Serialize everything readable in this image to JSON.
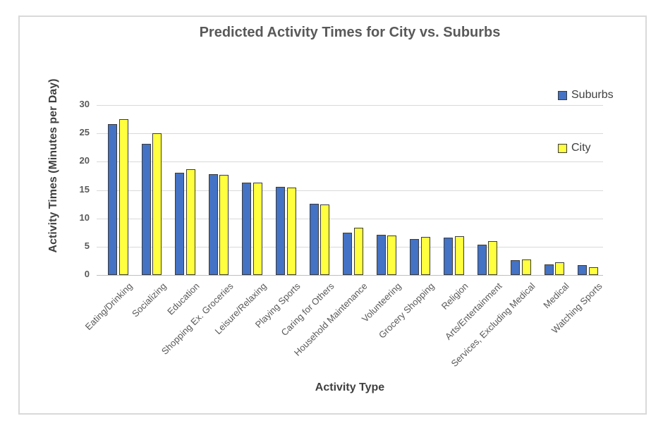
{
  "chart_data": {
    "type": "bar",
    "title": "Predicted Activity Times for City vs. Suburbs",
    "xlabel": "Activity Type",
    "ylabel": "Activity Times (Minutes per Day)",
    "ylim": [
      0,
      30
    ],
    "yticks": [
      0,
      5,
      10,
      15,
      20,
      25,
      30
    ],
    "grid": true,
    "legend_position": "right",
    "categories": [
      "Eating/Drinking",
      "Socializing",
      "Education",
      "Shopping Ex. Groceries",
      "Leisure/Relaxing",
      "Playing Sports",
      "Caring for Others",
      "Household Maintenance",
      "Volunteering",
      "Grocery Shopping",
      "Religion",
      "Arts/Entertainment",
      "Services, Excluding Medical",
      "Medical",
      "Watching Sports"
    ],
    "series": [
      {
        "name": "Suburbs",
        "color": "#4472C4",
        "values": [
          26.6,
          23.1,
          18.0,
          17.8,
          16.3,
          15.6,
          12.6,
          7.5,
          7.1,
          6.3,
          6.6,
          5.4,
          2.6,
          1.9,
          1.7
        ]
      },
      {
        "name": "City",
        "color": "#FFFF40",
        "values": [
          27.5,
          25.0,
          18.7,
          17.7,
          16.3,
          15.4,
          12.5,
          8.4,
          7.0,
          6.7,
          6.8,
          6.0,
          2.8,
          2.3,
          1.4
        ]
      }
    ],
    "colors": {
      "bar_border": "#3B3B3B",
      "gridline": "#D9D9D9",
      "axis_line": "#BFBFBF",
      "title_text": "#595959",
      "axis_title_text": "#404040",
      "tick_text": "#595959",
      "chart_border": "#D9D9D9"
    }
  }
}
